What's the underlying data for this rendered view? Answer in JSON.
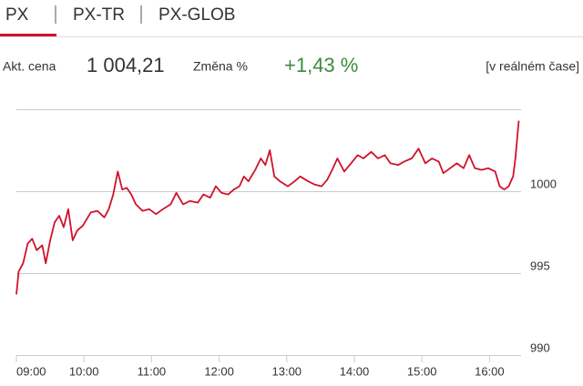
{
  "tabs": [
    "PX",
    "PX-TR",
    "PX-GLOB"
  ],
  "quote": {
    "price_label": "Akt. cena",
    "price": "1 004,21",
    "change_label": "Změna %",
    "change": "+1,43 %",
    "note": "[v reálném čase]"
  },
  "chart_data": {
    "type": "line",
    "x": [
      540,
      542,
      546,
      550,
      554,
      558,
      563,
      566,
      570,
      574,
      578,
      582,
      586,
      590,
      594,
      599,
      606,
      612,
      618,
      622,
      626,
      630,
      634,
      638,
      642,
      646,
      652,
      658,
      664,
      670,
      677,
      682,
      688,
      694,
      701,
      706,
      712,
      717,
      722,
      728,
      733,
      738,
      742,
      746,
      752,
      757,
      761,
      765,
      769,
      774,
      781,
      787,
      792,
      799,
      805,
      811,
      816,
      821,
      825,
      831,
      837,
      843,
      848,
      855,
      861,
      867,
      872,
      879,
      884,
      891,
      897,
      903,
      909,
      915,
      919,
      925,
      931,
      937,
      942,
      947,
      953,
      959,
      965,
      969,
      973,
      977,
      981,
      983,
      986
    ],
    "series": [
      {
        "name": "PX",
        "color": "#d0122c",
        "values": [
          993.7,
          995.1,
          995.6,
          996.8,
          997.1,
          996.4,
          996.7,
          995.6,
          997.0,
          998.1,
          998.5,
          997.8,
          998.9,
          997.0,
          997.6,
          997.9,
          998.7,
          998.8,
          998.4,
          998.9,
          999.8,
          1001.2,
          1000.1,
          1000.2,
          999.8,
          999.2,
          998.8,
          998.9,
          998.6,
          998.9,
          999.2,
          999.9,
          999.2,
          999.4,
          999.3,
          999.8,
          999.6,
          1000.3,
          999.9,
          999.8,
          1000.1,
          1000.3,
          1000.9,
          1000.6,
          1001.3,
          1002.0,
          1001.6,
          1002.5,
          1000.9,
          1000.6,
          1000.3,
          1000.6,
          1000.9,
          1000.6,
          1000.4,
          1000.3,
          1000.7,
          1001.4,
          1002.0,
          1001.2,
          1001.7,
          1002.2,
          1002.0,
          1002.4,
          1002.0,
          1002.2,
          1001.7,
          1001.6,
          1001.8,
          1002.0,
          1002.6,
          1001.7,
          1002.0,
          1001.8,
          1001.1,
          1001.4,
          1001.7,
          1001.4,
          1002.2,
          1001.4,
          1001.3,
          1001.4,
          1001.2,
          1000.3,
          1000.1,
          1000.3,
          1000.9,
          1002.0,
          1004.3
        ]
      }
    ],
    "xlim": [
      540,
      988
    ],
    "xticks": [
      {
        "value": 540,
        "label": "09:00"
      },
      {
        "value": 600,
        "label": "10:00"
      },
      {
        "value": 660,
        "label": "11:00"
      },
      {
        "value": 720,
        "label": "12:00"
      },
      {
        "value": 780,
        "label": "13:00"
      },
      {
        "value": 840,
        "label": "14:00"
      },
      {
        "value": 900,
        "label": "15:00"
      },
      {
        "value": 960,
        "label": "16:00"
      }
    ],
    "ylim": [
      990,
      1005
    ],
    "yticks": [
      990,
      995,
      1000
    ],
    "grid": true
  }
}
